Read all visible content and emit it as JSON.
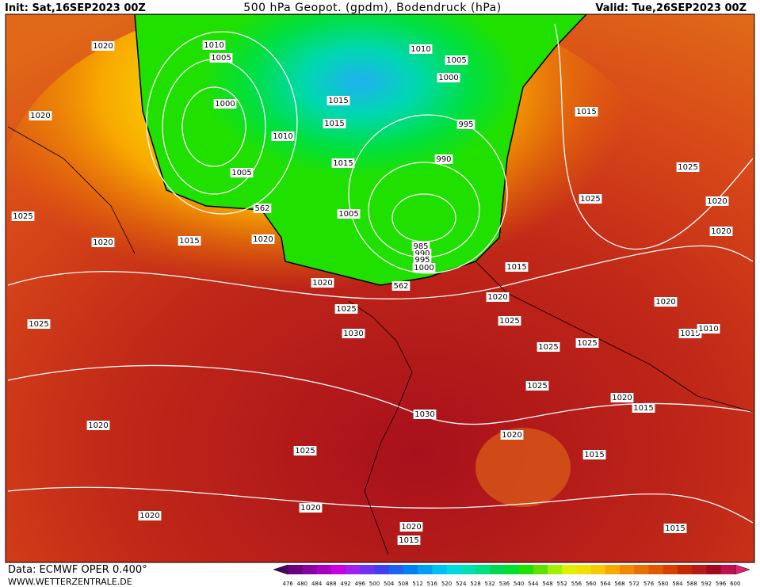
{
  "header": {
    "init": "Init: Sat,16SEP2023 00Z",
    "title": "500 hPa Geopot. (gpdm), Bodendruck (hPa)",
    "valid": "Valid: Tue,26SEP2023 00Z"
  },
  "footer": {
    "data": "Data: ECMWF OPER 0.400°",
    "site": "WWW.WETTERZENTRALE.DE"
  },
  "colorbar": {
    "labels": [
      "476",
      "480",
      "484",
      "488",
      "492",
      "496",
      "500",
      "504",
      "508",
      "512",
      "516",
      "520",
      "524",
      "528",
      "532",
      "536",
      "540",
      "544",
      "548",
      "552",
      "556",
      "560",
      "564",
      "568",
      "572",
      "576",
      "580",
      "584",
      "588",
      "592",
      "596",
      "600"
    ],
    "colors": [
      "#4b0060",
      "#6a0080",
      "#8a00a0",
      "#a800c0",
      "#c800e0",
      "#a020f0",
      "#7030f0",
      "#4040f0",
      "#2060f0",
      "#0080f0",
      "#00a0f0",
      "#00c0f0",
      "#00d8e0",
      "#00e0b0",
      "#00e080",
      "#00d850",
      "#00e030",
      "#20e000",
      "#60e000",
      "#a0f000",
      "#e0f000",
      "#f0e000",
      "#f8c800",
      "#f8a800",
      "#f08800",
      "#e87000",
      "#e05800",
      "#d84000",
      "#c82800",
      "#b81818",
      "#a00820",
      "#c01050",
      "#e02070"
    ]
  },
  "map": {
    "isobars": [
      "1020",
      "1010",
      "1005",
      "1000",
      "1005",
      "1010",
      "1015",
      "1015",
      "1015",
      "1010",
      "1005",
      "1000",
      "995",
      "990",
      "1005",
      "985",
      "990",
      "995",
      "1000",
      "562",
      "562",
      "1020",
      "1025",
      "1020",
      "1015",
      "1020",
      "1020",
      "1025",
      "1030",
      "1025",
      "1020",
      "1025",
      "1030",
      "1020",
      "1025",
      "1015",
      "1015",
      "1025",
      "1025",
      "1020",
      "1020",
      "1020",
      "1015",
      "1010",
      "1025",
      "1025",
      "1025",
      "1020",
      "1015",
      "1020",
      "1015",
      "1020",
      "1020",
      "1020",
      "1015",
      "1015"
    ]
  }
}
